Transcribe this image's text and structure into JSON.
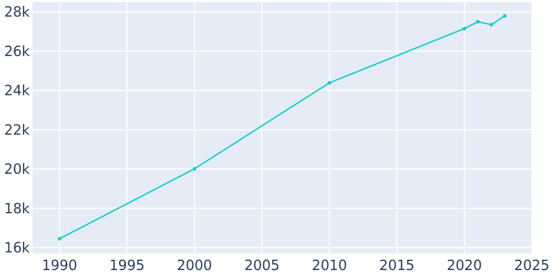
{
  "chart_data": {
    "type": "line",
    "title": "",
    "xlabel": "",
    "ylabel": "",
    "xlim": [
      1988,
      2025
    ],
    "ylim": [
      15700,
      28500
    ],
    "x_ticks": [
      1990,
      1995,
      2000,
      2005,
      2010,
      2015,
      2020,
      2025
    ],
    "x_tick_labels": [
      "1990",
      "1995",
      "2000",
      "2005",
      "2010",
      "2015",
      "2020",
      "2025"
    ],
    "y_ticks": [
      16000,
      18000,
      20000,
      22000,
      24000,
      26000,
      28000
    ],
    "y_tick_labels": [
      "16k",
      "18k",
      "20k",
      "22k",
      "24k",
      "26k",
      "28k"
    ],
    "grid": true,
    "legend": "none",
    "colors": {
      "plot_background": "#e5ecf6",
      "line": "#17cdc8",
      "grid": "#ffffff",
      "tick_text": "#2a3f5f"
    },
    "series": [
      {
        "x": [
          1990,
          2000,
          2010,
          2020,
          2021,
          2022,
          2023
        ],
        "y": [
          16450,
          20010,
          24390,
          27150,
          27500,
          27350,
          27800
        ]
      }
    ]
  }
}
